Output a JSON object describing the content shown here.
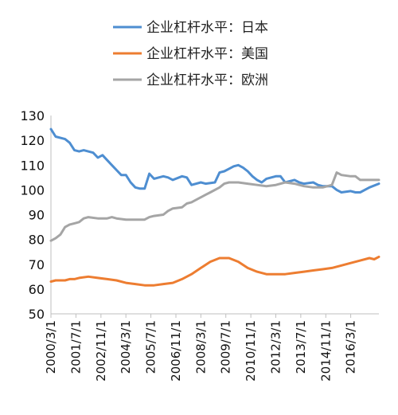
{
  "chart_data": {
    "type": "line",
    "legend_position": "top",
    "grid": false,
    "ylim": [
      50,
      130
    ],
    "y_ticks": [
      130,
      120,
      110,
      100,
      90,
      80,
      70,
      60,
      50
    ],
    "x_range": [
      "2000-03-01",
      "2017-09-01"
    ],
    "x_tick_labels": [
      {
        "label": "2000/3/1",
        "date": "2000-03-01"
      },
      {
        "label": "2001/7/1",
        "date": "2001-07-01"
      },
      {
        "label": "2002/11/1",
        "date": "2002-11-01"
      },
      {
        "label": "2004/3/1",
        "date": "2004-03-01"
      },
      {
        "label": "2005/7/1",
        "date": "2005-07-01"
      },
      {
        "label": "2006/11/1",
        "date": "2006-11-01"
      },
      {
        "label": "2008/3/1",
        "date": "2008-03-01"
      },
      {
        "label": "2009/7/1",
        "date": "2009-07-01"
      },
      {
        "label": "2010/11/1",
        "date": "2010-11-01"
      },
      {
        "label": "2012/3/1",
        "date": "2012-03-01"
      },
      {
        "label": "2013/7/1",
        "date": "2013-07-01"
      },
      {
        "label": "2014/11/1",
        "date": "2014-11-01"
      },
      {
        "label": "2016/3/1",
        "date": "2016-03-01"
      }
    ],
    "series": [
      {
        "name": "企业杠杆水平：日本",
        "color": "#4e8ed1",
        "points": [
          [
            "2000-03-01",
            124.5
          ],
          [
            "2000-06-01",
            121.5
          ],
          [
            "2000-12-01",
            120.5
          ],
          [
            "2001-03-01",
            119
          ],
          [
            "2001-06-01",
            116
          ],
          [
            "2001-09-01",
            115.5
          ],
          [
            "2001-12-01",
            116
          ],
          [
            "2002-06-01",
            115
          ],
          [
            "2002-09-01",
            113
          ],
          [
            "2002-12-01",
            114
          ],
          [
            "2003-06-01",
            110
          ],
          [
            "2003-09-01",
            108
          ],
          [
            "2003-12-01",
            106
          ],
          [
            "2004-03-01",
            106
          ],
          [
            "2004-06-01",
            103
          ],
          [
            "2004-09-01",
            101
          ],
          [
            "2004-12-01",
            100.5
          ],
          [
            "2005-03-01",
            100.5
          ],
          [
            "2005-06-01",
            106.5
          ],
          [
            "2005-09-01",
            104.5
          ],
          [
            "2006-03-01",
            105.5
          ],
          [
            "2006-06-01",
            105
          ],
          [
            "2006-09-01",
            104
          ],
          [
            "2007-03-01",
            105.5
          ],
          [
            "2007-06-01",
            105
          ],
          [
            "2007-09-01",
            102
          ],
          [
            "2008-03-01",
            103
          ],
          [
            "2008-06-01",
            102.5
          ],
          [
            "2008-12-01",
            103
          ],
          [
            "2009-03-01",
            107
          ],
          [
            "2009-06-01",
            107.5
          ],
          [
            "2009-09-01",
            108.5
          ],
          [
            "2009-12-01",
            109.5
          ],
          [
            "2010-03-01",
            110
          ],
          [
            "2010-06-01",
            109
          ],
          [
            "2010-09-01",
            107.5
          ],
          [
            "2010-12-01",
            105.5
          ],
          [
            "2011-03-01",
            104
          ],
          [
            "2011-06-01",
            103
          ],
          [
            "2011-09-01",
            104.5
          ],
          [
            "2012-03-01",
            105.5
          ],
          [
            "2012-06-01",
            105.5
          ],
          [
            "2012-09-01",
            103
          ],
          [
            "2013-03-01",
            104
          ],
          [
            "2013-06-01",
            103
          ],
          [
            "2013-09-01",
            102.5
          ],
          [
            "2014-03-01",
            103
          ],
          [
            "2014-06-01",
            102
          ],
          [
            "2014-09-01",
            101.5
          ],
          [
            "2015-03-01",
            101.5
          ],
          [
            "2015-06-01",
            100
          ],
          [
            "2015-09-01",
            99
          ],
          [
            "2016-03-01",
            99.5
          ],
          [
            "2016-06-01",
            99
          ],
          [
            "2016-09-01",
            99
          ],
          [
            "2017-03-01",
            101
          ],
          [
            "2017-09-01",
            102.5
          ]
        ]
      },
      {
        "name": "企业杠杆水平：美国",
        "color": "#ed7d31",
        "points": [
          [
            "2000-03-01",
            63
          ],
          [
            "2000-06-01",
            63.5
          ],
          [
            "2000-12-01",
            63.5
          ],
          [
            "2001-03-01",
            64
          ],
          [
            "2001-06-01",
            64
          ],
          [
            "2001-09-01",
            64.5
          ],
          [
            "2002-03-01",
            65
          ],
          [
            "2002-09-01",
            64.5
          ],
          [
            "2003-03-01",
            64
          ],
          [
            "2003-09-01",
            63.5
          ],
          [
            "2004-03-01",
            62.5
          ],
          [
            "2004-09-01",
            62
          ],
          [
            "2005-03-01",
            61.5
          ],
          [
            "2005-09-01",
            61.5
          ],
          [
            "2006-03-01",
            62
          ],
          [
            "2006-09-01",
            62.5
          ],
          [
            "2007-03-01",
            64
          ],
          [
            "2007-09-01",
            66
          ],
          [
            "2008-03-01",
            68.5
          ],
          [
            "2008-09-01",
            71
          ],
          [
            "2009-03-01",
            72.5
          ],
          [
            "2009-09-01",
            72.5
          ],
          [
            "2010-03-01",
            71
          ],
          [
            "2010-09-01",
            68.5
          ],
          [
            "2011-03-01",
            67
          ],
          [
            "2011-09-01",
            66
          ],
          [
            "2012-03-01",
            66
          ],
          [
            "2012-09-01",
            66
          ],
          [
            "2013-03-01",
            66.5
          ],
          [
            "2013-09-01",
            67
          ],
          [
            "2014-03-01",
            67.5
          ],
          [
            "2014-09-01",
            68
          ],
          [
            "2015-03-01",
            68.5
          ],
          [
            "2015-09-01",
            69.5
          ],
          [
            "2016-03-01",
            70.5
          ],
          [
            "2016-09-01",
            71.5
          ],
          [
            "2017-03-01",
            72.5
          ],
          [
            "2017-06-01",
            72
          ],
          [
            "2017-09-01",
            73
          ]
        ]
      },
      {
        "name": "企业杠杆水平：欧洲",
        "color": "#a5a5a5",
        "points": [
          [
            "2000-03-01",
            79.5
          ],
          [
            "2000-06-01",
            80.5
          ],
          [
            "2000-09-01",
            82
          ],
          [
            "2000-12-01",
            85
          ],
          [
            "2001-03-01",
            86
          ],
          [
            "2001-06-01",
            86.5
          ],
          [
            "2001-09-01",
            87
          ],
          [
            "2001-12-01",
            88.5
          ],
          [
            "2002-03-01",
            89
          ],
          [
            "2002-09-01",
            88.5
          ],
          [
            "2003-03-01",
            88.5
          ],
          [
            "2003-06-01",
            89
          ],
          [
            "2003-09-01",
            88.5
          ],
          [
            "2004-03-01",
            88
          ],
          [
            "2004-09-01",
            88
          ],
          [
            "2005-03-01",
            88
          ],
          [
            "2005-06-01",
            89
          ],
          [
            "2005-09-01",
            89.5
          ],
          [
            "2006-03-01",
            90
          ],
          [
            "2006-06-01",
            91.5
          ],
          [
            "2006-09-01",
            92.5
          ],
          [
            "2007-03-01",
            93
          ],
          [
            "2007-06-01",
            94.5
          ],
          [
            "2007-09-01",
            95
          ],
          [
            "2008-03-01",
            97
          ],
          [
            "2008-06-01",
            98
          ],
          [
            "2008-09-01",
            99
          ],
          [
            "2009-03-01",
            101
          ],
          [
            "2009-06-01",
            102.5
          ],
          [
            "2009-09-01",
            103
          ],
          [
            "2010-03-01",
            103
          ],
          [
            "2010-09-01",
            102.5
          ],
          [
            "2011-03-01",
            102
          ],
          [
            "2011-09-01",
            101.5
          ],
          [
            "2012-03-01",
            102
          ],
          [
            "2012-09-01",
            103
          ],
          [
            "2013-03-01",
            102.5
          ],
          [
            "2013-09-01",
            101.5
          ],
          [
            "2014-03-01",
            101
          ],
          [
            "2014-09-01",
            101
          ],
          [
            "2015-03-01",
            102
          ],
          [
            "2015-06-01",
            107
          ],
          [
            "2015-09-01",
            106
          ],
          [
            "2016-03-01",
            105.5
          ],
          [
            "2016-06-01",
            105.5
          ],
          [
            "2016-09-01",
            104
          ],
          [
            "2017-03-01",
            104
          ],
          [
            "2017-09-01",
            104
          ]
        ]
      }
    ]
  }
}
